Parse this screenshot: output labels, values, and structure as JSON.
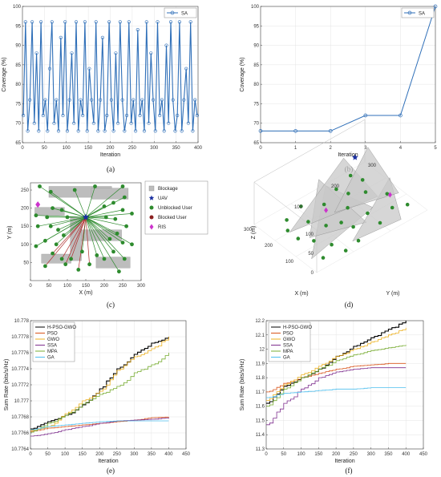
{
  "chart_data": [
    {
      "panel": "a",
      "caption": "(a)",
      "type": "line",
      "xlabel": "Iteration",
      "ylabel": "Coverage (%)",
      "xlim": [
        0,
        400
      ],
      "ylim": [
        65,
        100
      ],
      "xticks": [
        "0",
        "50",
        "100",
        "150",
        "200",
        "250",
        "300",
        "350",
        "400"
      ],
      "yticks": [
        "65",
        "70",
        "75",
        "80",
        "85",
        "90",
        "95",
        "100"
      ],
      "grid": true,
      "legend_position": "top-right",
      "series": [
        {
          "name": "SA",
          "color": "#2f6fb8",
          "marker": "circle",
          "values": [
            72,
            96,
            68,
            76,
            96,
            70,
            88,
            68,
            96,
            72,
            76,
            68,
            84,
            96,
            70,
            76,
            68,
            92,
            72,
            96,
            68,
            76,
            88,
            70,
            96,
            68,
            76,
            72,
            96,
            68,
            84,
            76,
            70,
            96,
            68,
            76,
            92,
            68,
            72,
            96,
            76,
            68,
            88,
            70,
            96,
            76,
            68,
            72,
            96,
            70,
            76,
            68,
            94,
            72,
            76,
            68,
            96,
            70,
            88,
            76,
            68,
            96,
            72,
            76,
            68,
            90,
            70,
            96,
            76,
            68,
            72,
            96,
            68,
            76,
            84,
            70,
            96,
            68,
            76,
            72
          ]
        }
      ]
    },
    {
      "panel": "b",
      "caption": "(b)",
      "type": "line",
      "xlabel": "Iteration",
      "ylabel": "Coverage (%)",
      "xlim": [
        0,
        5
      ],
      "ylim": [
        65,
        100
      ],
      "xticks": [
        "0",
        "1",
        "2",
        "3",
        "4",
        "5"
      ],
      "yticks": [
        "65",
        "70",
        "75",
        "80",
        "85",
        "90",
        "95",
        "100"
      ],
      "grid": true,
      "legend_position": "top-right",
      "series": [
        {
          "name": "SA",
          "color": "#2f6fb8",
          "marker": "circle",
          "x": [
            0,
            1,
            2,
            3,
            4,
            5
          ],
          "values": [
            68,
            68,
            68,
            72,
            72,
            100
          ]
        }
      ]
    },
    {
      "panel": "c",
      "caption": "(c)",
      "type": "scatter",
      "xlabel": "X (m)",
      "ylabel": "Y (m)",
      "xlim": [
        0,
        300
      ],
      "ylim": [
        0,
        270
      ],
      "xticks": [
        "0",
        "50",
        "100",
        "150",
        "200",
        "250",
        "300"
      ],
      "yticks": [
        "50",
        "100",
        "150",
        "200",
        "250"
      ],
      "legend_position": "right",
      "legend": [
        {
          "label": "Blockage",
          "kind": "square",
          "color": "#bdbdbd"
        },
        {
          "label": "UAV",
          "kind": "star",
          "color": "#1a2fa0"
        },
        {
          "label": "Unblocked User",
          "kind": "dot",
          "color": "#2e8b2e"
        },
        {
          "label": "Blocked User",
          "kind": "dot",
          "color": "#8b2020"
        },
        {
          "label": "RIS",
          "kind": "diamond",
          "color": "#cc33cc"
        }
      ],
      "uav": [
        150,
        175
      ],
      "ris": [
        20,
        210
      ],
      "blockages": [
        [
          50,
          230,
          170,
          30
        ],
        [
          165,
          225,
          100,
          30
        ],
        [
          12,
          180,
          80,
          22
        ],
        [
          112,
          110,
          135,
          30
        ],
        [
          30,
          48,
          80,
          25
        ],
        [
          178,
          35,
          92,
          30
        ],
        [
          108,
          55,
          30,
          120
        ]
      ],
      "unblocked_users": [
        [
          25,
          260
        ],
        [
          55,
          245
        ],
        [
          120,
          250
        ],
        [
          175,
          260
        ],
        [
          250,
          260
        ],
        [
          255,
          230
        ],
        [
          225,
          215
        ],
        [
          200,
          205
        ],
        [
          60,
          200
        ],
        [
          85,
          195
        ],
        [
          15,
          180
        ],
        [
          45,
          175
        ],
        [
          100,
          175
        ],
        [
          20,
          150
        ],
        [
          55,
          150
        ],
        [
          75,
          140
        ],
        [
          90,
          125
        ],
        [
          40,
          110
        ],
        [
          70,
          100
        ],
        [
          15,
          95
        ],
        [
          250,
          195
        ],
        [
          275,
          185
        ],
        [
          230,
          170
        ],
        [
          205,
          175
        ],
        [
          260,
          150
        ],
        [
          235,
          130
        ],
        [
          215,
          115
        ],
        [
          250,
          105
        ],
        [
          275,
          100
        ],
        [
          225,
          80
        ],
        [
          200,
          60
        ],
        [
          180,
          70
        ],
        [
          255,
          60
        ],
        [
          240,
          25
        ],
        [
          140,
          80
        ]
      ],
      "blocked_users": [
        [
          60,
          75
        ],
        [
          40,
          40
        ],
        [
          95,
          45
        ],
        [
          130,
          30
        ],
        [
          160,
          45
        ],
        [
          110,
          60
        ],
        [
          85,
          60
        ]
      ]
    },
    {
      "panel": "d",
      "caption": "(d)",
      "type": "scatter",
      "xlabel": "X (m)",
      "ylabel": "Y (m)",
      "zlabel": "Z (m)",
      "xticks": [
        "100",
        "200",
        "300"
      ],
      "yticks": [
        "100",
        "200",
        "300"
      ],
      "zticks": [
        "0",
        "50",
        "100"
      ]
    },
    {
      "panel": "e",
      "caption": "(e)",
      "type": "line",
      "xlabel": "Iteration",
      "ylabel": "Sum Rate (bits/s/Hz)",
      "xlim": [
        0,
        450
      ],
      "ylim": [
        10.7764,
        10.778
      ],
      "xticks": [
        "0",
        "50",
        "100",
        "150",
        "200",
        "250",
        "300",
        "350",
        "400",
        "450"
      ],
      "yticks": [
        "10.7764",
        "10.7766",
        "10.7768",
        "10.777",
        "10.7772",
        "10.7774",
        "10.7776",
        "10.7778",
        "10.778"
      ],
      "grid": true,
      "legend_position": "top-left",
      "x": [
        0,
        50,
        100,
        150,
        200,
        250,
        300,
        350,
        400
      ],
      "series": [
        {
          "name": "H-PSO-GWO",
          "color": "#000000",
          "values": [
            10.77665,
            10.77674,
            10.77682,
            10.77695,
            10.77715,
            10.7774,
            10.77758,
            10.77772,
            10.7778
          ]
        },
        {
          "name": "PSO",
          "color": "#d9541a",
          "values": [
            10.77662,
            10.77666,
            10.77668,
            10.7767,
            10.77672,
            10.77674,
            10.77676,
            10.77679,
            10.7768
          ]
        },
        {
          "name": "GWO",
          "color": "#edb120",
          "values": [
            10.77663,
            10.77668,
            10.77684,
            10.777,
            10.77712,
            10.77738,
            10.77755,
            10.77765,
            10.7778
          ]
        },
        {
          "name": "SSA",
          "color": "#7e2f8e",
          "values": [
            10.77656,
            10.77659,
            10.77664,
            10.77668,
            10.77672,
            10.77675,
            10.77676,
            10.77677,
            10.77679
          ]
        },
        {
          "name": "MPA",
          "color": "#77ac30",
          "values": [
            10.77661,
            10.77672,
            10.77682,
            10.77696,
            10.77708,
            10.77718,
            10.77735,
            10.77745,
            10.7776
          ]
        },
        {
          "name": "GA",
          "color": "#4dbeee",
          "values": [
            10.77664,
            10.77668,
            10.7767,
            10.77672,
            10.77674,
            10.77675,
            10.77675,
            10.77675,
            10.77675
          ]
        }
      ]
    },
    {
      "panel": "f",
      "caption": "(f)",
      "type": "line",
      "xlabel": "Iteration",
      "ylabel": "Sum Rate (bits/s/Hz)",
      "xlim": [
        0,
        450
      ],
      "ylim": [
        11.3,
        12.2
      ],
      "xticks": [
        "0",
        "50",
        "100",
        "150",
        "200",
        "250",
        "300",
        "350",
        "400",
        "450"
      ],
      "yticks": [
        "11.3",
        "11.4",
        "11.5",
        "11.6",
        "11.7",
        "11.8",
        "11.9",
        "12",
        "12.1",
        "12.2"
      ],
      "grid": true,
      "legend_position": "top-left",
      "x": [
        0,
        50,
        100,
        150,
        200,
        250,
        300,
        350,
        400
      ],
      "series": [
        {
          "name": "H-PSO-GWO",
          "color": "#000000",
          "values": [
            11.62,
            11.74,
            11.8,
            11.86,
            11.95,
            12.02,
            12.08,
            12.14,
            12.2
          ]
        },
        {
          "name": "PSO",
          "color": "#d9541a",
          "values": [
            11.7,
            11.76,
            11.8,
            11.83,
            11.86,
            11.88,
            11.89,
            11.9,
            11.9
          ]
        },
        {
          "name": "GWO",
          "color": "#edb120",
          "values": [
            11.64,
            11.75,
            11.82,
            11.88,
            11.95,
            12.0,
            12.05,
            12.1,
            12.15
          ]
        },
        {
          "name": "SSA",
          "color": "#7e2f8e",
          "values": [
            11.47,
            11.62,
            11.72,
            11.8,
            11.84,
            11.86,
            11.87,
            11.87,
            11.87
          ]
        },
        {
          "name": "MPA",
          "color": "#77ac30",
          "values": [
            11.6,
            11.72,
            11.8,
            11.86,
            11.92,
            11.96,
            11.99,
            12.01,
            12.03
          ]
        },
        {
          "name": "GA",
          "color": "#4dbeee",
          "values": [
            11.66,
            11.69,
            11.7,
            11.71,
            11.72,
            11.72,
            11.73,
            11.73,
            11.73
          ]
        }
      ]
    }
  ]
}
